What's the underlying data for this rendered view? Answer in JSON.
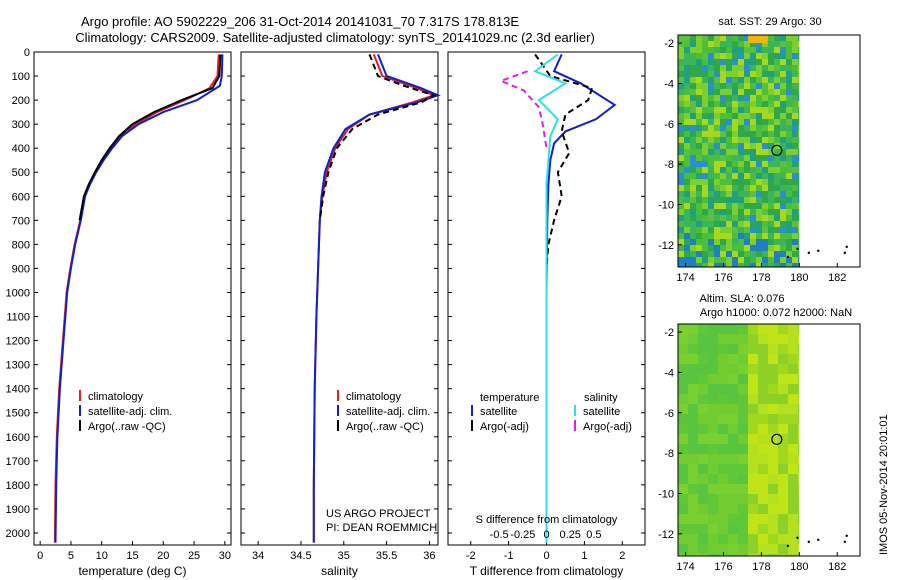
{
  "header": {
    "line1": "Argo profile: AO 5902229_206 31-Oct-2014 20141031_70 7.317S 178.813E",
    "line2": "Climatology: CARS2009. Satellite-adjusted climatology: synTS_20141029.nc (2.3d earlier)"
  },
  "side_label": "IMOS 05-Nov-2014 20:01:01",
  "colors": {
    "red": "#e02020",
    "blue": "#1020d0",
    "black": "#000000",
    "cyan": "#30e0e8",
    "magenta": "#e020e0"
  },
  "chart_data": [
    {
      "type": "line",
      "name": "temperature",
      "xlabel": "temperature (deg C)",
      "ylabel": "",
      "xlim": [
        -1,
        31
      ],
      "ylim": [
        2050,
        0
      ],
      "xticks": [
        "0",
        "5",
        "10",
        "15",
        "20",
        "25",
        "30"
      ],
      "xtick_values": [
        0,
        5,
        10,
        15,
        20,
        25,
        30
      ],
      "yticks": [
        "0",
        "100",
        "200",
        "300",
        "400",
        "500",
        "600",
        "700",
        "800",
        "900",
        "1000",
        "1100",
        "1200",
        "1300",
        "1400",
        "1500",
        "1600",
        "1700",
        "1800",
        "1900",
        "2000"
      ],
      "ytick_values": [
        0,
        100,
        200,
        300,
        400,
        500,
        600,
        700,
        800,
        900,
        1000,
        1100,
        1200,
        1300,
        1400,
        1500,
        1600,
        1700,
        1800,
        1900,
        2000
      ],
      "legend": [
        "climatology",
        "satellite-adj. clim.",
        "Argo(..raw -QC)"
      ],
      "series": [
        {
          "name": "climatology",
          "color": "red",
          "dash": false,
          "x": [
            29.0,
            28.8,
            27.5,
            23.5,
            19.0,
            15.5,
            13.0,
            11.5,
            10.2,
            9.0,
            8.0,
            7.2,
            6.5,
            5.6,
            4.9,
            4.3,
            3.7,
            3.1,
            2.7,
            2.5,
            2.4
          ],
          "y": [
            10,
            100,
            150,
            200,
            250,
            300,
            350,
            400,
            450,
            500,
            550,
            600,
            700,
            800,
            900,
            1000,
            1200,
            1400,
            1600,
            1800,
            2040
          ]
        },
        {
          "name": "satellite-adj. clim.",
          "color": "blue",
          "dash": false,
          "x": [
            29.6,
            29.5,
            29.2,
            25.5,
            20.0,
            16.0,
            13.3,
            11.7,
            10.3,
            9.1,
            8.1,
            7.3,
            6.6,
            5.7,
            5.0,
            4.4,
            3.8,
            3.2,
            2.8,
            2.6,
            2.5
          ],
          "y": [
            10,
            100,
            140,
            200,
            250,
            300,
            350,
            400,
            450,
            500,
            550,
            600,
            700,
            800,
            900,
            1000,
            1200,
            1400,
            1600,
            1800,
            2040
          ]
        },
        {
          "name": "Argo(..raw -QC)",
          "color": "black",
          "dash": false,
          "x": [
            29.3,
            29.1,
            28.0,
            23.0,
            18.5,
            15.0,
            12.8,
            11.3,
            10.0,
            8.9,
            7.9,
            7.1,
            6.4
          ],
          "y": [
            10,
            100,
            150,
            200,
            250,
            300,
            350,
            400,
            450,
            500,
            550,
            600,
            700
          ]
        }
      ]
    },
    {
      "type": "line",
      "name": "salinity",
      "xlabel": "salinity",
      "ylabel": "",
      "xlim": [
        33.8,
        36.1
      ],
      "ylim": [
        2050,
        0
      ],
      "xticks": [
        "34",
        "34.5",
        "35",
        "35.5",
        "36"
      ],
      "xtick_values": [
        34,
        34.5,
        35,
        35.5,
        36
      ],
      "legend": [
        "climatology",
        "satellite-adj. clim.",
        "Argo(..raw -QC)"
      ],
      "annotation": [
        "US ARGO PROJECT",
        "PI: DEAN ROEMMICH"
      ],
      "series": [
        {
          "name": "climatology",
          "color": "red",
          "dash": false,
          "x": [
            35.35,
            35.45,
            35.85,
            36.05,
            35.8,
            35.3,
            35.05,
            34.9,
            34.8,
            34.75,
            34.72,
            34.7,
            34.68,
            34.66,
            34.65,
            34.65
          ],
          "y": [
            10,
            100,
            150,
            180,
            210,
            260,
            320,
            400,
            500,
            600,
            700,
            900,
            1100,
            1400,
            1800,
            2040
          ]
        },
        {
          "name": "satellite-adj. clim.",
          "color": "blue",
          "dash": false,
          "x": [
            35.4,
            35.5,
            35.9,
            36.1,
            35.85,
            35.3,
            35.02,
            34.88,
            34.78,
            34.74,
            34.72,
            34.7,
            34.68,
            34.66,
            34.65,
            34.65
          ],
          "y": [
            10,
            100,
            150,
            180,
            210,
            260,
            320,
            400,
            500,
            600,
            700,
            900,
            1100,
            1400,
            1800,
            2040
          ]
        },
        {
          "name": "Argo(..raw -QC)",
          "color": "black",
          "dash": true,
          "x": [
            35.3,
            35.4,
            35.7,
            36.05,
            35.9,
            35.4,
            35.1,
            34.92,
            34.82,
            34.76,
            34.72
          ],
          "y": [
            10,
            100,
            140,
            180,
            210,
            260,
            320,
            400,
            500,
            600,
            700
          ]
        }
      ]
    },
    {
      "type": "line",
      "name": "difference",
      "xlabel": "T difference from climatology",
      "top_label": "S difference from climatology",
      "xlim": [
        -2.6,
        2.6
      ],
      "ylim": [
        2050,
        0
      ],
      "xticks": [
        "-2",
        "-1",
        "0",
        "1",
        "2"
      ],
      "xtick_values": [
        -2,
        -1,
        0,
        1,
        2
      ],
      "top_ticks": [
        "-0.5",
        "-0.25",
        "0",
        "0.25",
        "0.5"
      ],
      "top_tick_values": [
        -0.5,
        -0.25,
        0,
        0.25,
        0.5
      ],
      "legend_titles": [
        "temperature",
        "salinity"
      ],
      "legend": [
        "satellite",
        "Argo(-adj)",
        "satellite",
        "Argo(-adj)"
      ],
      "series": [
        {
          "name": "T satellite",
          "color": "blue",
          "dash": false,
          "x": [
            0.4,
            0.2,
            0.9,
            1.8,
            1.3,
            0.5,
            0.2,
            0.1,
            0.05,
            0.02,
            0.0,
            0.0
          ],
          "y": [
            10,
            80,
            130,
            220,
            280,
            330,
            380,
            450,
            550,
            700,
            1000,
            1300
          ]
        },
        {
          "name": "T Argo(-adj)",
          "color": "black",
          "dash": true,
          "x": [
            -0.3,
            0.1,
            1.2,
            1.1,
            0.5,
            0.4,
            0.6,
            0.3,
            0.4,
            0.2,
            0.05,
            0.0
          ],
          "y": [
            10,
            100,
            150,
            200,
            260,
            330,
            420,
            500,
            600,
            700,
            800,
            900
          ]
        },
        {
          "name": "S satellite",
          "color": "cyan",
          "dash": false,
          "x": [
            0.3,
            -0.3,
            0.5,
            -0.2,
            0.3,
            0.1,
            0.05,
            0.0,
            0.0,
            0.0,
            0.0,
            0.0
          ],
          "y": [
            10,
            80,
            130,
            200,
            280,
            350,
            450,
            550,
            700,
            1000,
            1500,
            2040
          ]
        },
        {
          "name": "S Argo(-adj)",
          "color": "magenta",
          "dash": true,
          "x": [
            -0.5,
            -1.2,
            -0.6,
            -0.2,
            -0.1,
            0.0
          ],
          "y": [
            80,
            120,
            160,
            230,
            300,
            400
          ]
        }
      ]
    },
    {
      "type": "heatmap",
      "name": "sst_map",
      "title": "sat. SST: 29 Argo: 30",
      "xlim": [
        173.6,
        183.2
      ],
      "ylim": [
        -13.1,
        -1.6
      ],
      "xticks": [
        "174",
        "176",
        "178",
        "180",
        "182"
      ],
      "xtick_values": [
        174,
        176,
        178,
        180,
        182
      ],
      "yticks": [
        "-2",
        "-4",
        "-6",
        "-8",
        "-10",
        "-12"
      ],
      "ytick_values": [
        -2,
        -4,
        -6,
        -8,
        -10,
        -12
      ],
      "data_lon_max": 180.0,
      "profile_marker": {
        "lon": 178.813,
        "lat": -7.317
      }
    },
    {
      "type": "heatmap",
      "name": "sla_map",
      "title": "Altim. SLA: 0.076",
      "subtitle": "Argo h1000: 0.072 h2000: NaN",
      "xlim": [
        173.6,
        183.2
      ],
      "ylim": [
        -13.1,
        -1.6
      ],
      "xticks": [
        "174",
        "176",
        "178",
        "180",
        "182"
      ],
      "xtick_values": [
        174,
        176,
        178,
        180,
        182
      ],
      "yticks": [
        "-2",
        "-4",
        "-6",
        "-8",
        "-10",
        "-12"
      ],
      "ytick_values": [
        -2,
        -4,
        -6,
        -8,
        -10,
        -12
      ],
      "data_lon_max": 180.0,
      "profile_marker": {
        "lon": 178.813,
        "lat": -7.317
      }
    }
  ]
}
